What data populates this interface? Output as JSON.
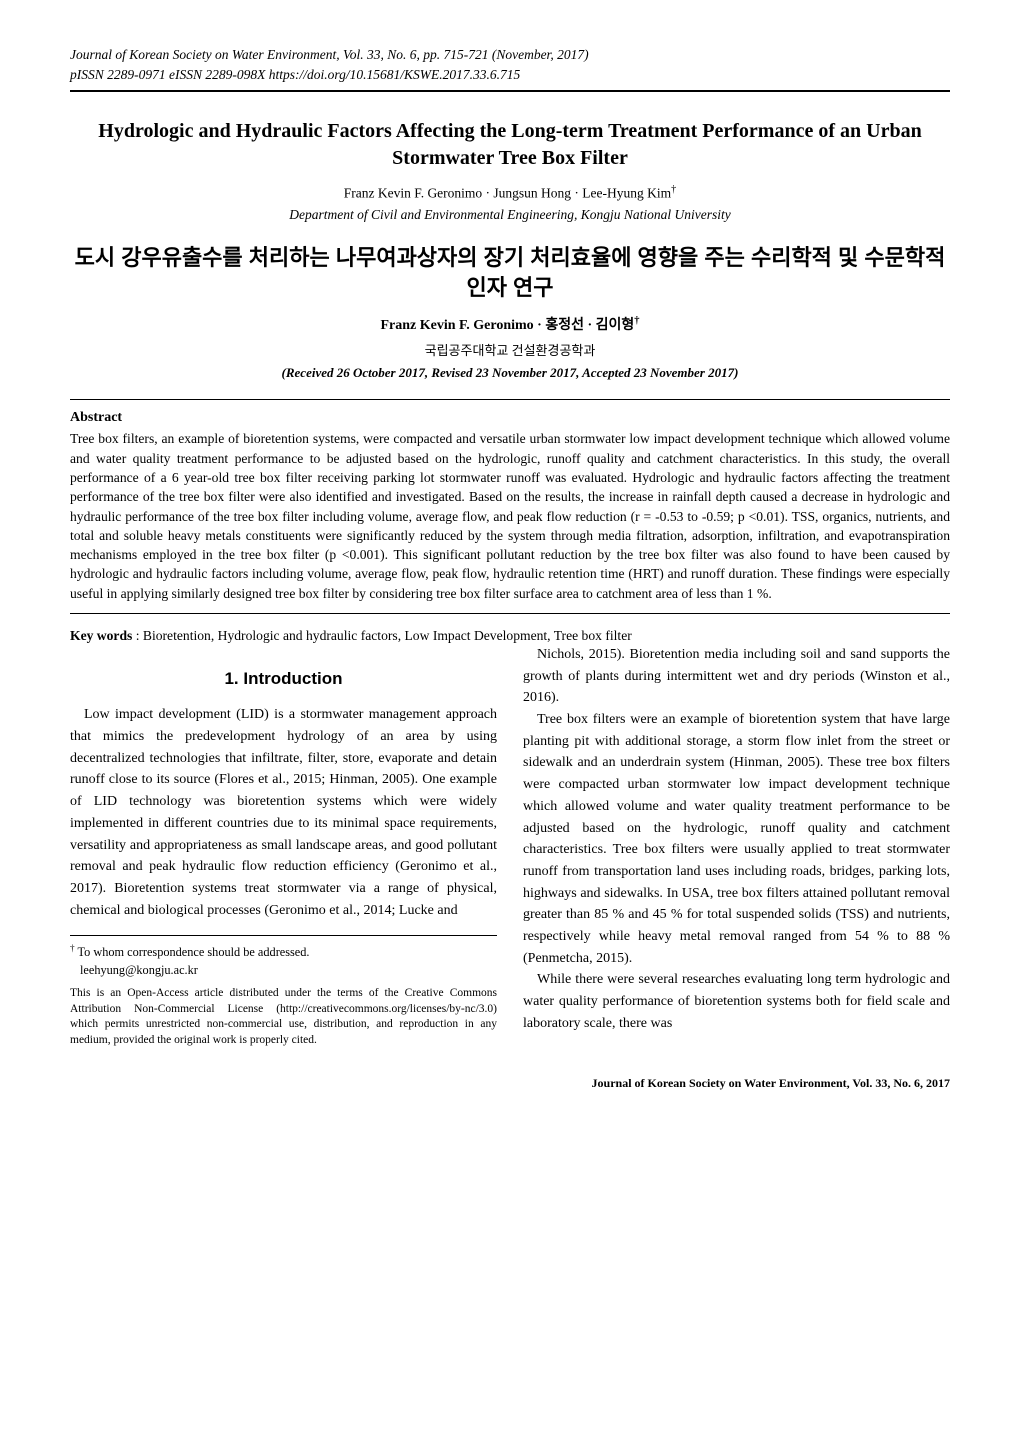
{
  "journal": {
    "line1": "Journal of Korean Society on Water Environment, Vol. 33, No. 6, pp. 715-721 (November, 2017)",
    "line2": "pISSN 2289-0971  eISSN 2289-098X  https://doi.org/10.15681/KSWE.2017.33.6.715"
  },
  "title_en": "Hydrologic and Hydraulic Factors Affecting the Long-term Treatment Performance of an Urban Stormwater Tree Box Filter",
  "authors_en": "Franz Kevin F. Geronimo · Jungsun Hong · Lee-Hyung Kim",
  "corr_mark": "†",
  "affil_en": "Department of Civil and Environmental Engineering, Kongju National University",
  "title_ko": "도시 강우유출수를 처리하는 나무여과상자의 장기 처리효율에 영향을 주는 수리학적 및 수문학적 인자 연구",
  "authors_ko": "Franz Kevin F. Geronimo · 홍정선 · 김이형",
  "affil_ko": "국립공주대학교 건설환경공학과",
  "dates": "(Received 26 October 2017, Revised 23 November 2017, Accepted 23 November 2017)",
  "abstract_head": "Abstract",
  "abstract_body": "Tree box filters, an example of bioretention systems, were compacted and versatile urban stormwater low impact development technique which allowed volume and water quality treatment performance to be adjusted based on the hydrologic, runoff quality and catchment characteristics. In this study, the overall performance of a 6 year-old tree box filter receiving parking lot stormwater runoff was evaluated. Hydrologic and hydraulic factors affecting the treatment performance of the tree box filter were also identified and investigated. Based on the results, the increase in rainfall depth caused a decrease in hydrologic and hydraulic performance of the tree box filter including volume, average flow, and peak flow reduction (r = -0.53 to -0.59; p <0.01). TSS, organics, nutrients, and total and soluble heavy metals constituents were significantly reduced by the system through media filtration, adsorption, infiltration, and evapotranspiration mechanisms employed in the tree box filter (p <0.001). This significant pollutant reduction by the tree box filter was also found to have been caused by hydrologic and hydraulic factors including volume, average flow, peak flow, hydraulic retention time (HRT) and runoff duration. These findings were especially useful in applying similarly designed tree box filter by considering tree box filter surface area to catchment area of less than 1 %.",
  "keywords_label": "Key words",
  "keywords_sep": " : ",
  "keywords_body": "Bioretention, Hydrologic and hydraulic factors, Low Impact Development, Tree box filter",
  "section1_head": "1. Introduction",
  "para1": "Low impact development (LID) is a stormwater management approach that mimics the predevelopment hydrology of an area by using decentralized technologies that infiltrate, filter, store, evaporate and detain runoff close to its source (Flores et al., 2015; Hinman, 2005). One example of LID technology was bioretention systems which were widely implemented in different countries due to its minimal space requirements, versatility and appropriateness as small landscape areas, and good pollutant removal and peak hydraulic flow reduction efficiency (Geronimo et al., 2017). Bioretention systems treat stormwater via a range of physical, chemical and biological processes (Geronimo et al., 2014; Lucke and",
  "para2": "Nichols, 2015). Bioretention media including soil and sand supports the growth of plants during intermittent wet and dry periods (Winston et al., 2016).",
  "para3": "Tree box filters were an example of bioretention system that have large planting pit with additional storage, a storm flow inlet from the street or sidewalk and an underdrain system (Hinman, 2005). These tree box filters were compacted urban stormwater low impact development technique which allowed volume and water quality treatment performance to be adjusted based on the hydrologic, runoff quality and catchment characteristics. Tree box filters were usually applied to treat stormwater runoff from transportation land uses including roads, bridges, parking lots, highways and sidewalks. In USA, tree box filters attained pollutant removal greater than 85 % and 45 % for total suspended solids (TSS) and nutrients, respectively while heavy metal removal ranged from 54 % to 88 % (Penmetcha, 2015).",
  "para4": "While there were several researches evaluating long term hydrologic and water quality performance of bioretention systems both for field scale and laboratory scale, there was",
  "footnote_corr_line": " To whom correspondence should be addressed.",
  "footnote_email": "leehyung@kongju.ac.kr",
  "copyright": "This is an Open-Access article distributed under the terms of the Creative Commons Attribution Non-Commercial License (http://creativecommons.org/licenses/by-nc/3.0) which permits unrestricted non-commercial use, distribution, and reproduction in any medium, provided the original work is properly cited.",
  "footer": "Journal of Korean Society on Water Environment, Vol. 33, No. 6, 2017"
}
